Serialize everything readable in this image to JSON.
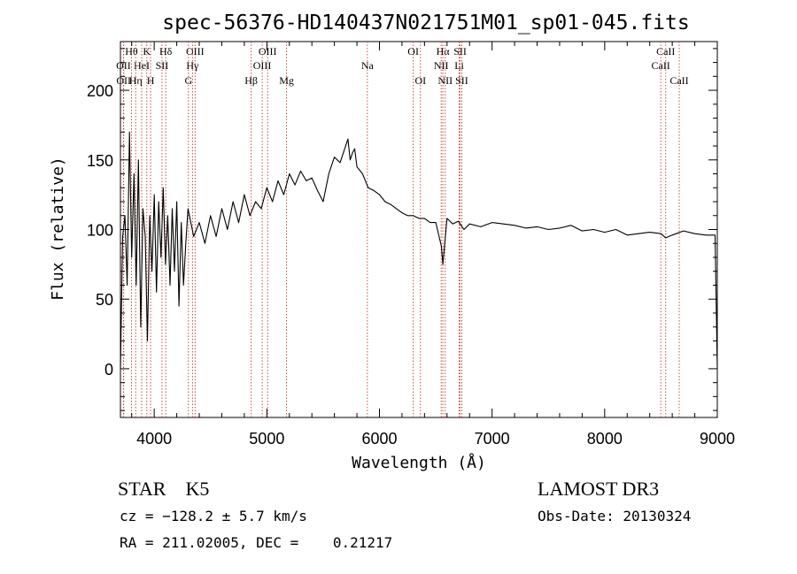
{
  "chart_data": {
    "type": "line",
    "title": "spec-56376-HD140437N021751M01_sp01-045.fits",
    "xlabel": "Wavelength (Å)",
    "ylabel": "Flux (relative)",
    "xlim": [
      3700,
      9000
    ],
    "ylim": [
      -35,
      235
    ],
    "xticks": [
      4000,
      5000,
      6000,
      7000,
      8000,
      9000
    ],
    "yticks": [
      0,
      50,
      100,
      150,
      200
    ],
    "grid": false,
    "line_color": "#000000",
    "marker_color": "#c0392b",
    "series": [
      {
        "name": "flux",
        "x": [
          3700,
          3720,
          3740,
          3760,
          3780,
          3800,
          3820,
          3840,
          3860,
          3880,
          3900,
          3920,
          3940,
          3960,
          3980,
          4000,
          4020,
          4040,
          4060,
          4080,
          4100,
          4120,
          4140,
          4160,
          4180,
          4200,
          4220,
          4240,
          4260,
          4280,
          4300,
          4350,
          4400,
          4450,
          4500,
          4550,
          4600,
          4650,
          4700,
          4750,
          4800,
          4850,
          4900,
          4950,
          5000,
          5050,
          5100,
          5150,
          5200,
          5250,
          5300,
          5350,
          5400,
          5450,
          5500,
          5550,
          5600,
          5650,
          5700,
          5720,
          5740,
          5760,
          5780,
          5800,
          5850,
          5900,
          5950,
          6000,
          6050,
          6100,
          6150,
          6200,
          6250,
          6300,
          6350,
          6400,
          6450,
          6500,
          6550,
          6563,
          6600,
          6650,
          6700,
          6750,
          6800,
          6900,
          7000,
          7100,
          7200,
          7300,
          7400,
          7500,
          7600,
          7700,
          7800,
          7900,
          8000,
          8100,
          8200,
          8300,
          8400,
          8500,
          8542,
          8600,
          8700,
          8800,
          8900,
          8980,
          9000
        ],
        "y": [
          0,
          95,
          110,
          60,
          170,
          80,
          140,
          60,
          150,
          30,
          115,
          95,
          20,
          110,
          70,
          125,
          55,
          120,
          80,
          130,
          75,
          110,
          60,
          115,
          70,
          120,
          45,
          105,
          60,
          90,
          115,
          95,
          105,
          90,
          110,
          95,
          115,
          100,
          120,
          105,
          125,
          110,
          120,
          115,
          130,
          120,
          135,
          125,
          140,
          132,
          142,
          135,
          137,
          128,
          120,
          140,
          152,
          148,
          160,
          165,
          150,
          155,
          158,
          145,
          140,
          130,
          128,
          125,
          120,
          118,
          115,
          112,
          110,
          110,
          108,
          108,
          105,
          105,
          88,
          75,
          108,
          104,
          106,
          100,
          104,
          102,
          105,
          104,
          103,
          101,
          102,
          100,
          101,
          103,
          99,
          100,
          98,
          100,
          96,
          97,
          98,
          97,
          94,
          96,
          99,
          97,
          96,
          96,
          0
        ]
      }
    ],
    "lines": [
      {
        "name": "Hθ",
        "wavelength": 3798,
        "row": 0
      },
      {
        "name": "OII",
        "wavelength": 3727,
        "row": 1
      },
      {
        "name": "OII",
        "wavelength": 3729,
        "row": 2
      },
      {
        "name": "HeI",
        "wavelength": 3889,
        "row": 1
      },
      {
        "name": "Hη",
        "wavelength": 3835,
        "row": 2
      },
      {
        "name": "K",
        "wavelength": 3934,
        "row": 0
      },
      {
        "name": "SII",
        "wavelength": 4069,
        "row": 1
      },
      {
        "name": "H",
        "wavelength": 3968,
        "row": 2
      },
      {
        "name": "Hδ",
        "wavelength": 4102,
        "row": 0
      },
      {
        "name": "OIII",
        "wavelength": 4363,
        "row": 0
      },
      {
        "name": "Hγ",
        "wavelength": 4340,
        "row": 1
      },
      {
        "name": "G",
        "wavelength": 4304,
        "row": 2
      },
      {
        "name": "Hβ",
        "wavelength": 4861,
        "row": 2
      },
      {
        "name": "OIII",
        "wavelength": 5007,
        "row": 0
      },
      {
        "name": "OIII",
        "wavelength": 4959,
        "row": 1
      },
      {
        "name": "Mg",
        "wavelength": 5175,
        "row": 2
      },
      {
        "name": "Na",
        "wavelength": 5893,
        "row": 1
      },
      {
        "name": "OI",
        "wavelength": 6300,
        "row": 0
      },
      {
        "name": "OI",
        "wavelength": 6364,
        "row": 2
      },
      {
        "name": "Hα",
        "wavelength": 6563,
        "row": 0
      },
      {
        "name": "SII",
        "wavelength": 6716,
        "row": 0
      },
      {
        "name": "NII",
        "wavelength": 6548,
        "row": 1
      },
      {
        "name": "Li",
        "wavelength": 6708,
        "row": 1
      },
      {
        "name": "NII",
        "wavelength": 6584,
        "row": 2
      },
      {
        "name": "SII",
        "wavelength": 6731,
        "row": 2
      },
      {
        "name": "CaII",
        "wavelength": 8542,
        "row": 0
      },
      {
        "name": "CaII",
        "wavelength": 8498,
        "row": 1
      },
      {
        "name": "CaII",
        "wavelength": 8662,
        "row": 2
      }
    ]
  },
  "info": {
    "class_text": "STAR    K5",
    "cz_text": "cz = −128.2 ± 5.7 km/s",
    "radec_text": "RA = 211.02005, DEC =    0.21217",
    "survey": "LAMOST DR3",
    "obs_date": "Obs-Date: 20130324"
  }
}
